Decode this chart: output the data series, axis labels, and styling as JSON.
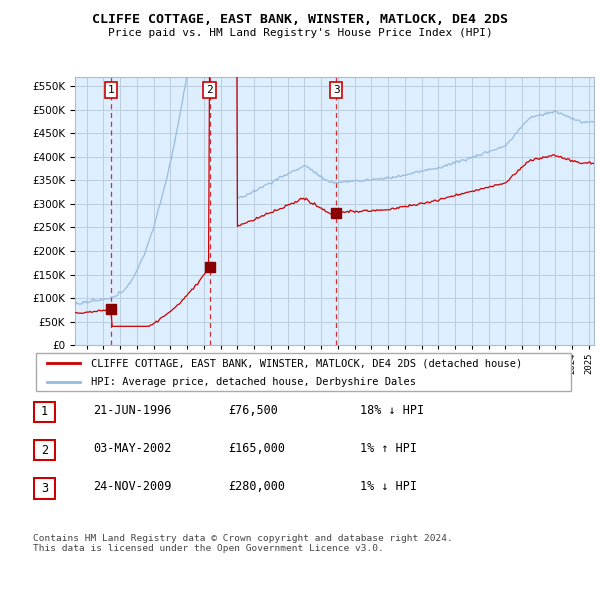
{
  "title": "CLIFFE COTTAGE, EAST BANK, WINSTER, MATLOCK, DE4 2DS",
  "subtitle": "Price paid vs. HM Land Registry's House Price Index (HPI)",
  "ylim": [
    0,
    570000
  ],
  "yticks": [
    0,
    50000,
    100000,
    150000,
    200000,
    250000,
    300000,
    350000,
    400000,
    450000,
    500000,
    550000
  ],
  "xlim_start": 1994.3,
  "xlim_end": 2025.3,
  "sale_color": "#cc0000",
  "hpi_color": "#99bbdd",
  "sale_dates": [
    1996.47,
    2002.34,
    2009.9
  ],
  "sale_prices": [
    76500,
    165000,
    280000
  ],
  "sale_labels": [
    "1",
    "2",
    "3"
  ],
  "legend_sale_label": "CLIFFE COTTAGE, EAST BANK, WINSTER, MATLOCK, DE4 2DS (detached house)",
  "legend_hpi_label": "HPI: Average price, detached house, Derbyshire Dales",
  "table_rows": [
    [
      "1",
      "21-JUN-1996",
      "£76,500",
      "18% ↓ HPI"
    ],
    [
      "2",
      "03-MAY-2002",
      "£165,000",
      "1% ↑ HPI"
    ],
    [
      "3",
      "24-NOV-2009",
      "£280,000",
      "1% ↓ HPI"
    ]
  ],
  "footer": "Contains HM Land Registry data © Crown copyright and database right 2024.\nThis data is licensed under the Open Government Licence v3.0.",
  "bg_color": "#ddeeff",
  "grid_color": "#bbccdd"
}
